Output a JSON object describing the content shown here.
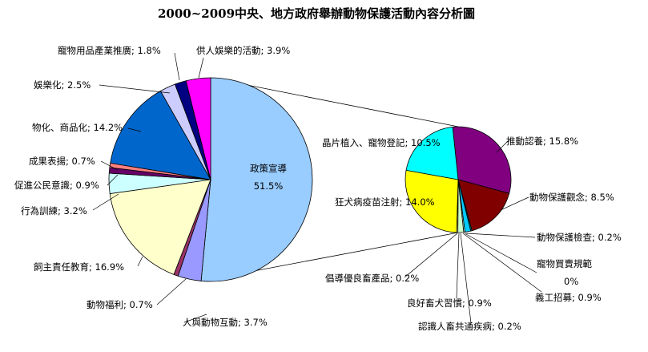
{
  "chart_data": {
    "type": "pie",
    "title": "2000~2009中央、地方政府舉辦動物保護活動內容分析圖",
    "main_pie": {
      "slices": [
        {
          "label": "政策宣導",
          "value": 51.5,
          "color": "#99ccff"
        },
        {
          "label": "人與動物互動",
          "value": 3.7,
          "color": "#9999ff"
        },
        {
          "label": "動物福利",
          "value": 0.7,
          "color": "#993366"
        },
        {
          "label": "飼主責任教育",
          "value": 16.9,
          "color": "#ffffcc"
        },
        {
          "label": "行為訓練",
          "value": 3.2,
          "color": "#ccffff"
        },
        {
          "label": "促進公民意識",
          "value": 0.9,
          "color": "#660066"
        },
        {
          "label": "成果表揚",
          "value": 0.7,
          "color": "#ff8080"
        },
        {
          "label": "物化、商品化",
          "value": 14.2,
          "color": "#0066cc"
        },
        {
          "label": "娛樂化",
          "value": 2.5,
          "color": "#ccccff"
        },
        {
          "label": "寵物用品產業推廣",
          "value": 1.8,
          "color": "#000080"
        },
        {
          "label": "供人娛樂的活動",
          "value": 3.9,
          "color": "#ff00ff"
        }
      ]
    },
    "sub_pie": {
      "exploded_from": "政策宣導",
      "slices": [
        {
          "label": "推動認養",
          "value": 15.8,
          "color": "#800080"
        },
        {
          "label": "動物保護觀念",
          "value": 8.5,
          "color": "#800000"
        },
        {
          "label": "動物保護檢查",
          "value": 0.2,
          "color": "#008080"
        },
        {
          "label": "寵物買賣規範",
          "value": 0.0,
          "color": "#0000ff"
        },
        {
          "label": "義工招募",
          "value": 0.9,
          "color": "#00ccff"
        },
        {
          "label": "認識人畜共通疾病",
          "value": 0.2,
          "color": "#ccffff"
        },
        {
          "label": "良好畜犬習慣",
          "value": 0.9,
          "color": "#ccffcc"
        },
        {
          "label": "倡導優良畜產品",
          "value": 0.2,
          "color": "#ffff99"
        },
        {
          "label": "狂犬病疫苗注射",
          "value": 14.0,
          "color": "#ffff00"
        },
        {
          "label": "晶片植入、寵物登記",
          "value": 10.5,
          "color": "#00ffff"
        }
      ]
    },
    "data_labels": {
      "main": [
        {
          "text": "政策宣導",
          "value_text": "51.5%"
        },
        {
          "text": "人與動物互動; 3.7%"
        },
        {
          "text": "動物福利; 0.7%"
        },
        {
          "text": "飼主責任教育; 16.9%"
        },
        {
          "text": "行為訓練; 3.2%"
        },
        {
          "text": "促進公民意識; 0.9%"
        },
        {
          "text": "成果表揚; 0.7%"
        },
        {
          "text": "物化、商品化; 14.2%"
        },
        {
          "text": "娛樂化; 2.5%"
        },
        {
          "text": "寵物用品產業推廣; 1.8%"
        },
        {
          "text": "供人娛樂的活動; 3.9%"
        }
      ],
      "sub": [
        {
          "text": "推動認養; 15.8%"
        },
        {
          "text": "動物保護觀念; 8.5%"
        },
        {
          "text": "動物保護檢查; 0.2%"
        },
        {
          "text": "寵物買賣規範",
          "value_text": "0%"
        },
        {
          "text": "義工招募; 0.9%"
        },
        {
          "text": "認識人畜共通疾病; 0.2%"
        },
        {
          "text": "良好畜犬習慣; 0.9%"
        },
        {
          "text": "倡導優良畜產品; 0.2%"
        },
        {
          "text": "狂犬病疫苗注射; 14.0%"
        },
        {
          "text": "晶片植入、寵物登記; 10.5%"
        }
      ]
    }
  }
}
